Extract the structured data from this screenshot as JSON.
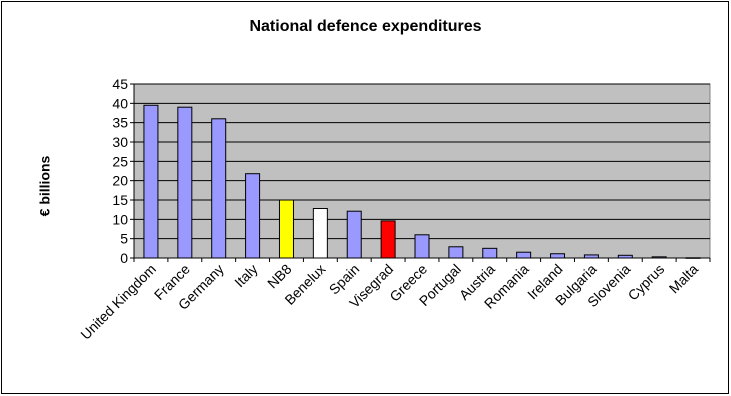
{
  "chart_data": {
    "type": "bar",
    "title": "National defence expenditures",
    "xlabel": "",
    "ylabel": "€ billions",
    "ylim": [
      0,
      45
    ],
    "yticks": [
      0,
      5,
      10,
      15,
      20,
      25,
      30,
      35,
      40,
      45
    ],
    "grid": true,
    "plot_background": "#C0C0C0",
    "categories": [
      "United Kingdom",
      "France",
      "Germany",
      "Italy",
      "NB8",
      "Benelux",
      "Spain",
      "Visegrad",
      "Greece",
      "Portugal",
      "Austria",
      "Romania",
      "Ireland",
      "Bulgaria",
      "Slovenia",
      "Cyprus",
      "Malta"
    ],
    "values": [
      39.5,
      39,
      36,
      21.8,
      15,
      12.8,
      12.1,
      9.6,
      6,
      2.9,
      2.5,
      1.5,
      1.1,
      0.8,
      0.7,
      0.3,
      0.05
    ],
    "colors": [
      "#9999FF",
      "#9999FF",
      "#9999FF",
      "#9999FF",
      "#FFFF00",
      "#FFFFFF",
      "#9999FF",
      "#FF0000",
      "#9999FF",
      "#9999FF",
      "#9999FF",
      "#9999FF",
      "#9999FF",
      "#9999FF",
      "#9999FF",
      "#9999FF",
      "#9999FF"
    ]
  }
}
